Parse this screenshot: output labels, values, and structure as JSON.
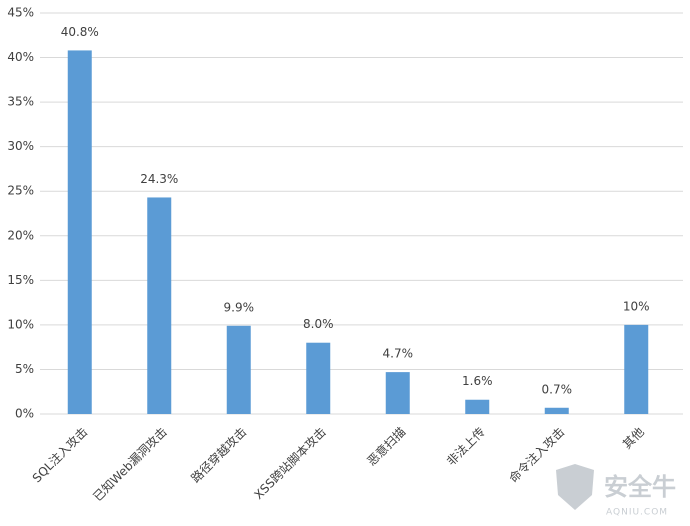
{
  "chart_data": {
    "type": "bar",
    "categories": [
      "SQL注入攻击",
      "已知Web漏洞攻击",
      "路径穿越攻击",
      "XSS跨站脚本攻击",
      "恶意扫描",
      "非法上传",
      "命令注入攻击",
      "其他"
    ],
    "values": [
      40.8,
      24.3,
      9.9,
      8.0,
      4.7,
      1.6,
      0.7,
      10
    ],
    "value_labels": [
      "40.8%",
      "24.3%",
      "9.9%",
      "8.0%",
      "4.7%",
      "1.6%",
      "0.7%",
      "10%"
    ],
    "color": "#5b9bd5",
    "ylim": [
      0,
      45
    ],
    "yticks": [
      {
        "value": 0,
        "label": "0%"
      },
      {
        "value": 5,
        "label": "5%"
      },
      {
        "value": 10,
        "label": "10%"
      },
      {
        "value": 15,
        "label": "15%"
      },
      {
        "value": 20,
        "label": "20%"
      },
      {
        "value": 25,
        "label": "25%"
      },
      {
        "value": 30,
        "label": "30%"
      },
      {
        "value": 35,
        "label": "35%"
      },
      {
        "value": 40,
        "label": "40%"
      },
      {
        "value": 45,
        "label": "45%"
      }
    ],
    "grid": true
  },
  "watermark": {
    "text": "安全牛",
    "subtext": "AQNIU.COM"
  }
}
